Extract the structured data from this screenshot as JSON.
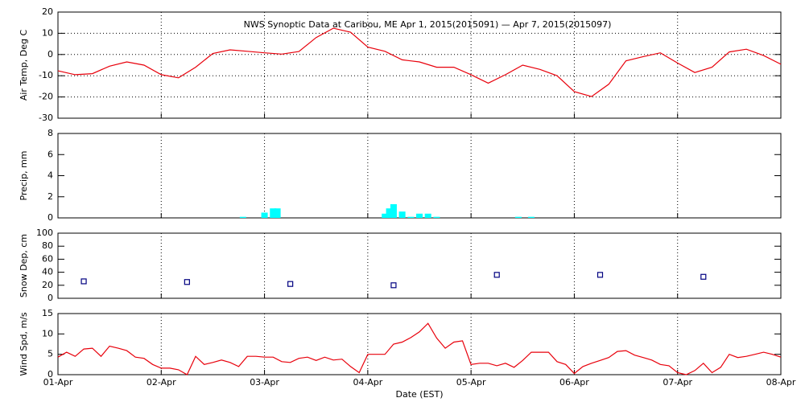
{
  "chart_data": [
    {
      "type": "line",
      "title": "NWS Synoptic Data at Caribou, ME   Apr  1, 2015(2015091) — Apr  7, 2015(2015097)",
      "ylabel": "Air Temp, Deg C",
      "color": "#e8000b",
      "grid": "both",
      "xlim": [
        0,
        168
      ],
      "xticks": [
        0,
        24,
        48,
        72,
        96,
        120,
        144,
        168
      ],
      "ylim": [
        -30,
        20
      ],
      "yticks": [
        -30,
        -20,
        -10,
        0,
        10,
        20
      ],
      "x": [
        0,
        4,
        8,
        12,
        16,
        20,
        24,
        28,
        32,
        36,
        40,
        44,
        48,
        52,
        56,
        60,
        64,
        68,
        72,
        76,
        80,
        84,
        88,
        92,
        96,
        100,
        104,
        108,
        112,
        116,
        120,
        124,
        128,
        132,
        136,
        140,
        144,
        148,
        152,
        156,
        160,
        164,
        168
      ],
      "values": [
        -7.7,
        -9.5,
        -9,
        -5.5,
        -3.5,
        -5,
        -9.5,
        -11,
        -6,
        0.5,
        2.2,
        1.5,
        0.8,
        0.2,
        1.4,
        8,
        12.4,
        10.5,
        3.5,
        1.5,
        -2.5,
        -3.5,
        -6,
        -6,
        -9.5,
        -13.5,
        -9.5,
        -5,
        -7,
        -10,
        -17.5,
        -19.8,
        -14,
        -3,
        -1,
        0.8,
        -4,
        -8.5,
        -6,
        1.2,
        2.5,
        -0.5,
        -4.6
      ]
    },
    {
      "type": "bar",
      "ylabel": "Precip, mm",
      "color": "#00ffff",
      "grid": "x",
      "xlim": [
        0,
        168
      ],
      "xticks": [
        0,
        24,
        48,
        72,
        96,
        120,
        144,
        168
      ],
      "ylim": [
        0,
        8
      ],
      "yticks": [
        0,
        2,
        4,
        6,
        8
      ],
      "x": [
        43,
        48,
        50,
        51,
        76,
        77,
        78,
        80,
        82,
        84,
        86,
        88,
        107,
        110
      ],
      "values": [
        0.1,
        0.5,
        0.9,
        0.9,
        0.4,
        0.9,
        1.3,
        0.6,
        0.1,
        0.4,
        0.4,
        0.1,
        0.1,
        0.1
      ]
    },
    {
      "type": "scatter",
      "ylabel": "Snow Dep, cm",
      "color": "#000080",
      "grid": "x",
      "xlim": [
        0,
        168
      ],
      "xticks": [
        0,
        24,
        48,
        72,
        96,
        120,
        144,
        168
      ],
      "ylim": [
        0,
        100
      ],
      "yticks": [
        0,
        20,
        40,
        60,
        80,
        100
      ],
      "x": [
        6,
        30,
        54,
        78,
        102,
        126,
        150
      ],
      "values": [
        26,
        25,
        22,
        20,
        36,
        36,
        33
      ]
    },
    {
      "type": "line",
      "ylabel": "Wind Spd, m/s",
      "xlabel": "Date (EST)",
      "color": "#e8000b",
      "grid": "x",
      "xlim": [
        0,
        168
      ],
      "xticks": [
        {
          "value": 0,
          "label": "01-Apr"
        },
        {
          "value": 24,
          "label": "02-Apr"
        },
        {
          "value": 48,
          "label": "03-Apr"
        },
        {
          "value": 72,
          "label": "04-Apr"
        },
        {
          "value": 96,
          "label": "05-Apr"
        },
        {
          "value": 120,
          "label": "06-Apr"
        },
        {
          "value": 144,
          "label": "07-Apr"
        },
        {
          "value": 168,
          "label": "08-Apr"
        }
      ],
      "ylim": [
        0,
        15
      ],
      "yticks": [
        0,
        5,
        10,
        15
      ],
      "x": [
        0,
        2,
        4,
        6,
        8,
        10,
        12,
        14,
        16,
        18,
        20,
        22,
        24,
        26,
        28,
        30,
        32,
        34,
        36,
        38,
        40,
        42,
        44,
        46,
        48,
        50,
        52,
        54,
        56,
        58,
        60,
        62,
        64,
        66,
        68,
        70,
        72,
        74,
        76,
        78,
        80,
        82,
        84,
        86,
        88,
        90,
        92,
        94,
        96,
        98,
        100,
        102,
        104,
        106,
        108,
        110,
        112,
        114,
        116,
        118,
        120,
        122,
        124,
        126,
        128,
        130,
        132,
        134,
        136,
        138,
        140,
        142,
        144,
        146,
        148,
        150,
        152,
        154,
        156,
        158,
        160,
        162,
        164,
        166,
        168
      ],
      "values": [
        4.3,
        5.5,
        4.5,
        6.3,
        6.5,
        4.5,
        7,
        6.5,
        5.9,
        4.3,
        4,
        2.5,
        1.6,
        1.6,
        1.2,
        0,
        4.5,
        2.5,
        3,
        3.6,
        3,
        2,
        4.5,
        4.5,
        4.3,
        4.3,
        3.2,
        3,
        4,
        4.3,
        3.5,
        4.3,
        3.6,
        3.8,
        2,
        0.5,
        5,
        5,
        5,
        7.5,
        8,
        9.1,
        10.5,
        12.6,
        9,
        6.5,
        8,
        8.3,
        2.5,
        2.8,
        2.8,
        2.2,
        2.8,
        1.8,
        3.5,
        5.5,
        5.5,
        5.5,
        3.2,
        2.5,
        0.3,
        2,
        2.8,
        3.5,
        4.2,
        5.7,
        5.9,
        4.8,
        4.2,
        3.6,
        2.5,
        2.2,
        0.5,
        0,
        1,
        2.8,
        0.5,
        1.8,
        5,
        4.2,
        4.5,
        5,
        5.5,
        5,
        4.3
      ]
    }
  ]
}
